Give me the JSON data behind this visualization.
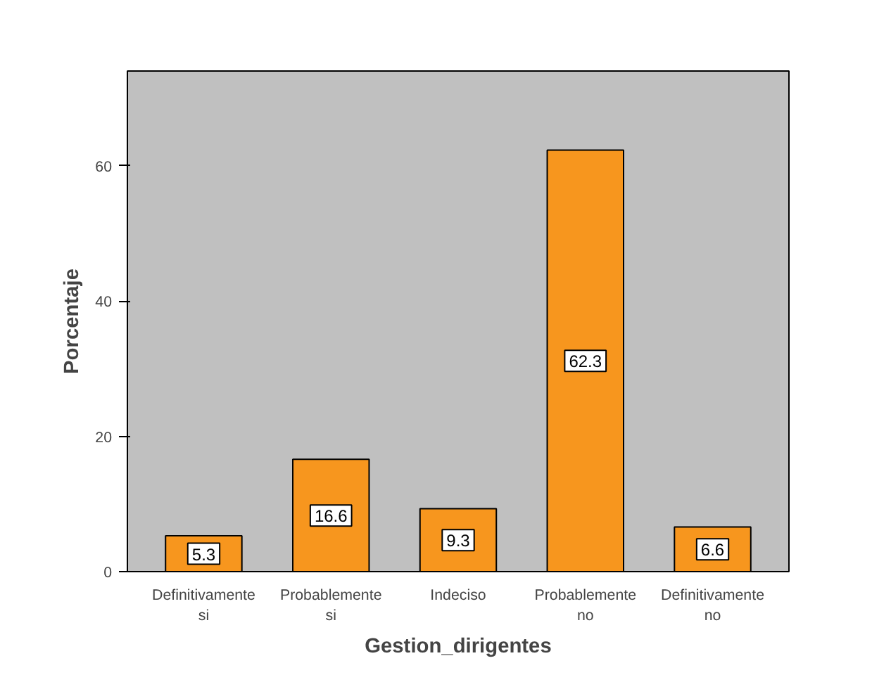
{
  "chart_data": {
    "type": "bar",
    "xlabel": "Gestion_dirigentes",
    "ylabel": "Porcentaje",
    "categories": [
      "Definitivamente\nsi",
      "Probablemente\nsi",
      "Indeciso",
      "Probablemente\nno",
      "Definitivamente\nno"
    ],
    "values": [
      5.3,
      16.6,
      9.3,
      62.3,
      6.6
    ],
    "color": "#f7961e",
    "ylim": [
      0,
      74
    ],
    "yticks": [
      0,
      20,
      40,
      60
    ],
    "grid": false,
    "data_labels": true
  }
}
